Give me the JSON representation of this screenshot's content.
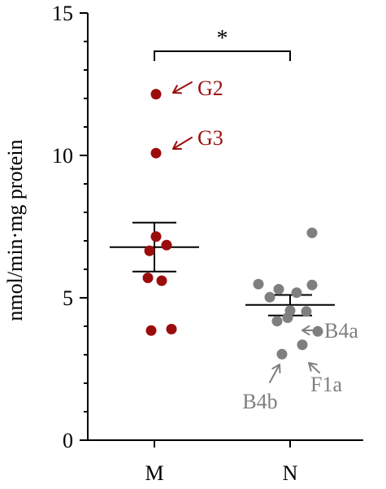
{
  "chart_data": {
    "type": "scatter",
    "title": "",
    "xlabel": "",
    "ylabel": "nmol/min·mg protein",
    "ylim": [
      0,
      15
    ],
    "yticks": [
      0,
      5,
      10,
      15
    ],
    "categories": [
      "M",
      "N"
    ],
    "series": [
      {
        "category": "M",
        "color": "#9b0d0d",
        "values": [
          12.15,
          10.08,
          7.15,
          6.85,
          6.65,
          5.7,
          5.6,
          3.85,
          3.9
        ],
        "mean": 6.78,
        "sem": [
          5.92,
          7.64
        ]
      },
      {
        "category": "N",
        "color": "#7f7f7f",
        "values": [
          7.28,
          5.48,
          5.3,
          5.18,
          5.45,
          5.02,
          4.55,
          4.52,
          4.18,
          4.3,
          3.82,
          3.35,
          3.02
        ],
        "mean": 4.75,
        "sem": [
          4.38,
          5.1
        ]
      }
    ],
    "significance": {
      "between": [
        "M",
        "N"
      ],
      "label": "*"
    },
    "annotations": [
      {
        "text": "G2",
        "category": "M",
        "value": 12.15,
        "color": "#9b0d0d"
      },
      {
        "text": "G3",
        "category": "M",
        "value": 10.08,
        "color": "#9b0d0d"
      },
      {
        "text": "B4a",
        "category": "N",
        "value": 3.82,
        "color": "#7f7f7f"
      },
      {
        "text": "F1a",
        "category": "N",
        "value": 3.35,
        "color": "#7f7f7f"
      },
      {
        "text": "B4b",
        "category": "N",
        "value": 3.02,
        "color": "#7f7f7f"
      }
    ]
  }
}
